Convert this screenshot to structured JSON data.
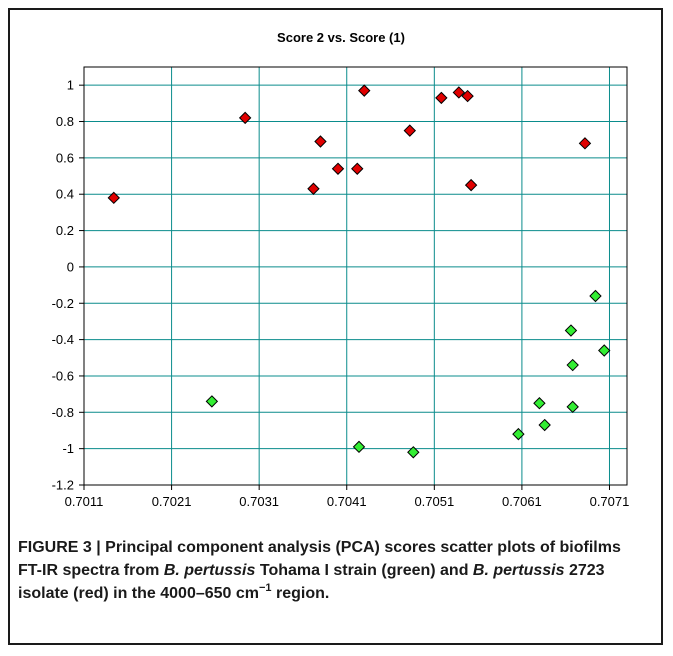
{
  "chart_data": {
    "type": "scatter",
    "title": "Score 2 vs. Score (1)",
    "xlabel": "",
    "ylabel": "",
    "xlim": [
      0.7011,
      0.7073
    ],
    "ylim": [
      -1.2,
      1.1
    ],
    "xticks": [
      0.7011,
      0.7021,
      0.7031,
      0.7041,
      0.7051,
      0.7061,
      0.7071
    ],
    "xtick_labels": [
      "0.7011",
      "0.7021",
      "0.7031",
      "0.7041",
      "0.7051",
      "0.7061",
      "0.7071"
    ],
    "yticks": [
      1,
      0.8,
      0.6,
      0.4,
      0.2,
      0,
      -0.2,
      -0.4,
      -0.6,
      -0.8,
      -1,
      -1.2
    ],
    "ytick_labels": [
      "1",
      "0.8",
      "0.6",
      "0.4",
      "0.2",
      "0",
      "-0.2",
      "-0.4",
      "-0.6",
      "-0.8",
      "-1",
      "-1.2"
    ],
    "grid": true,
    "series": [
      {
        "color": "#e00000",
        "marker": "diamond",
        "points": [
          {
            "x": 0.70144,
            "y": 0.38
          },
          {
            "x": 0.70294,
            "y": 0.82
          },
          {
            "x": 0.70372,
            "y": 0.43
          },
          {
            "x": 0.7038,
            "y": 0.69
          },
          {
            "x": 0.704,
            "y": 0.54
          },
          {
            "x": 0.70422,
            "y": 0.54
          },
          {
            "x": 0.7043,
            "y": 0.97
          },
          {
            "x": 0.70482,
            "y": 0.75
          },
          {
            "x": 0.70518,
            "y": 0.93
          },
          {
            "x": 0.70538,
            "y": 0.96
          },
          {
            "x": 0.70548,
            "y": 0.94
          },
          {
            "x": 0.70552,
            "y": 0.45
          },
          {
            "x": 0.70682,
            "y": 0.68
          }
        ]
      },
      {
        "color": "#33ee33",
        "marker": "diamond",
        "points": [
          {
            "x": 0.70256,
            "y": -0.74
          },
          {
            "x": 0.70424,
            "y": -0.99
          },
          {
            "x": 0.70486,
            "y": -1.02
          },
          {
            "x": 0.70606,
            "y": -0.92
          },
          {
            "x": 0.7063,
            "y": -0.75
          },
          {
            "x": 0.70636,
            "y": -0.87
          },
          {
            "x": 0.70666,
            "y": -0.35
          },
          {
            "x": 0.70668,
            "y": -0.54
          },
          {
            "x": 0.70668,
            "y": -0.77
          },
          {
            "x": 0.70694,
            "y": -0.16
          },
          {
            "x": 0.70704,
            "y": -0.46
          }
        ]
      }
    ]
  },
  "caption": {
    "label": "FIGURE 3 | ",
    "text1": "Principal component analysis (PCA) scores scatter plots of biofilms FT-IR spectra from ",
    "italic1": "B. pertussis",
    "text2": " Tohama I strain (green) and ",
    "italic2": "B. pertussis",
    "text3": " 2723 isolate (red) in the 4000–650 cm",
    "sup": "−1",
    "text4": " region."
  },
  "colors": {
    "grid": "#0a8c8c",
    "axis": "#000000",
    "marker_stroke": "#000000"
  }
}
